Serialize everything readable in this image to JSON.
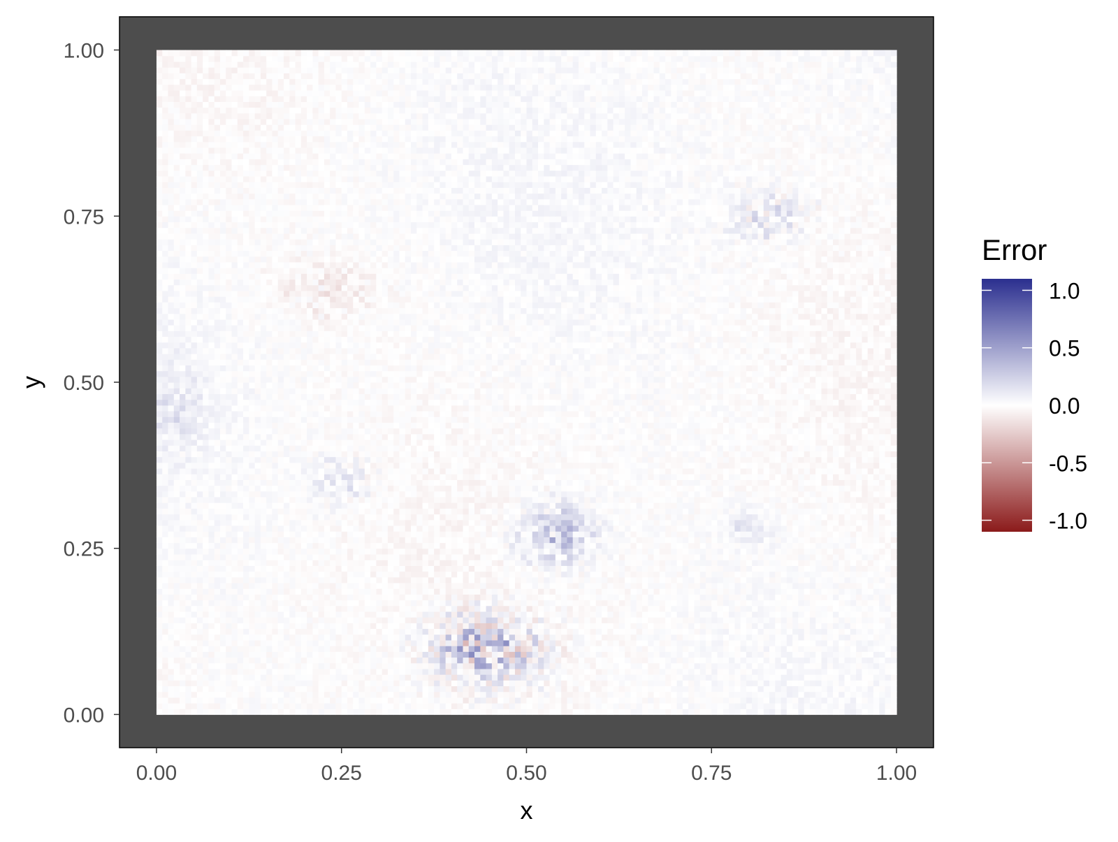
{
  "chart_data": {
    "type": "heatmap",
    "title": "",
    "xlabel": "x",
    "ylabel": "y",
    "xlim": [
      -0.05,
      1.05
    ],
    "ylim": [
      -0.05,
      1.05
    ],
    "x_ticks": [
      0.0,
      0.25,
      0.5,
      0.75,
      1.0
    ],
    "x_tick_labels": [
      "0.00",
      "0.25",
      "0.50",
      "0.75",
      "1.00"
    ],
    "y_ticks": [
      0.0,
      0.25,
      0.5,
      0.75,
      1.0
    ],
    "y_tick_labels": [
      "0.00",
      "0.25",
      "0.50",
      "0.75",
      "1.00"
    ],
    "data_extent": {
      "x": [
        0.0,
        1.0
      ],
      "y": [
        0.0,
        1.0
      ]
    },
    "grid": false,
    "panel_background": "#4d4d4d",
    "legend": {
      "title": "Error",
      "position": "right",
      "ticks": [
        1.0,
        0.5,
        0.0,
        -0.5,
        -1.0
      ],
      "tick_labels": [
        "1.0",
        "0.5",
        "0.0",
        "-0.5",
        "-1.0"
      ],
      "range": [
        -1.1,
        1.1
      ],
      "colors": {
        "low": "#8b1a1a",
        "mid": "#ffffff",
        "high": "#2b2f8f"
      }
    },
    "grid_resolution": [
      128,
      116
    ],
    "noise_amplitude": 0.05,
    "error_features": [
      {
        "x": 0.45,
        "y": 0.1,
        "sx": 0.055,
        "sy": 0.04,
        "amp": 0.2,
        "noise": 0.55
      },
      {
        "x": 0.54,
        "y": 0.27,
        "sx": 0.04,
        "sy": 0.035,
        "amp": 0.25,
        "noise": 0.25
      },
      {
        "x": 0.83,
        "y": 0.75,
        "sx": 0.04,
        "sy": 0.03,
        "amp": 0.1,
        "noise": 0.2
      },
      {
        "x": 0.25,
        "y": 0.35,
        "sx": 0.035,
        "sy": 0.03,
        "amp": 0.1,
        "noise": 0.12
      },
      {
        "x": 0.8,
        "y": 0.28,
        "sx": 0.02,
        "sy": 0.02,
        "amp": 0.12,
        "noise": 0.08
      },
      {
        "x": 0.23,
        "y": 0.64,
        "sx": 0.05,
        "sy": 0.03,
        "amp": -0.08,
        "noise": 0.1
      },
      {
        "x": 0.03,
        "y": 0.46,
        "sx": 0.03,
        "sy": 0.05,
        "amp": 0.08,
        "noise": 0.1
      }
    ]
  }
}
